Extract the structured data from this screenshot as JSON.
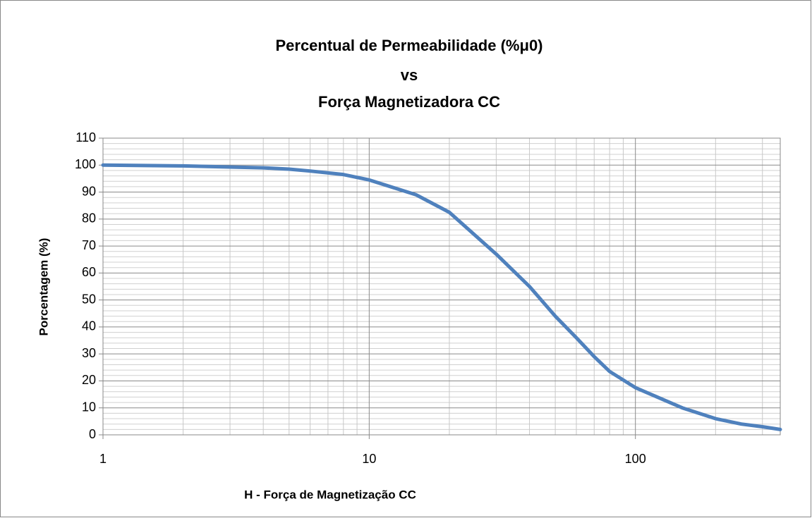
{
  "chart_data": {
    "type": "line",
    "title": [
      "Percentual de Permeabilidade (%μ0)",
      "vs",
      "Força Magnetizadora CC"
    ],
    "xlabel": "H - Força de Magnetização CC",
    "ylabel": "Porcentagem (%)",
    "x": [
      1,
      2,
      3,
      4,
      5,
      6,
      8,
      10,
      15,
      20,
      30,
      40,
      50,
      60,
      70,
      80,
      100,
      150,
      200,
      250,
      300,
      350
    ],
    "series": [
      {
        "name": "Percentual de Permeabilidade",
        "color": "#4f81bd",
        "values": [
          100,
          99.7,
          99.3,
          99,
          98.5,
          97.8,
          96.5,
          94.5,
          89,
          82.5,
          67,
          55,
          44,
          36,
          29,
          23.5,
          17.5,
          10,
          6,
          4,
          3,
          2
        ]
      }
    ],
    "xlim": [
      1,
      350
    ],
    "xticks": [
      1,
      10,
      100
    ],
    "xlog": true,
    "ylim": [
      0,
      110
    ],
    "yticks": [
      0,
      10,
      20,
      30,
      40,
      50,
      60,
      70,
      80,
      90,
      100,
      110
    ],
    "grid": true,
    "minor_grid": true
  }
}
